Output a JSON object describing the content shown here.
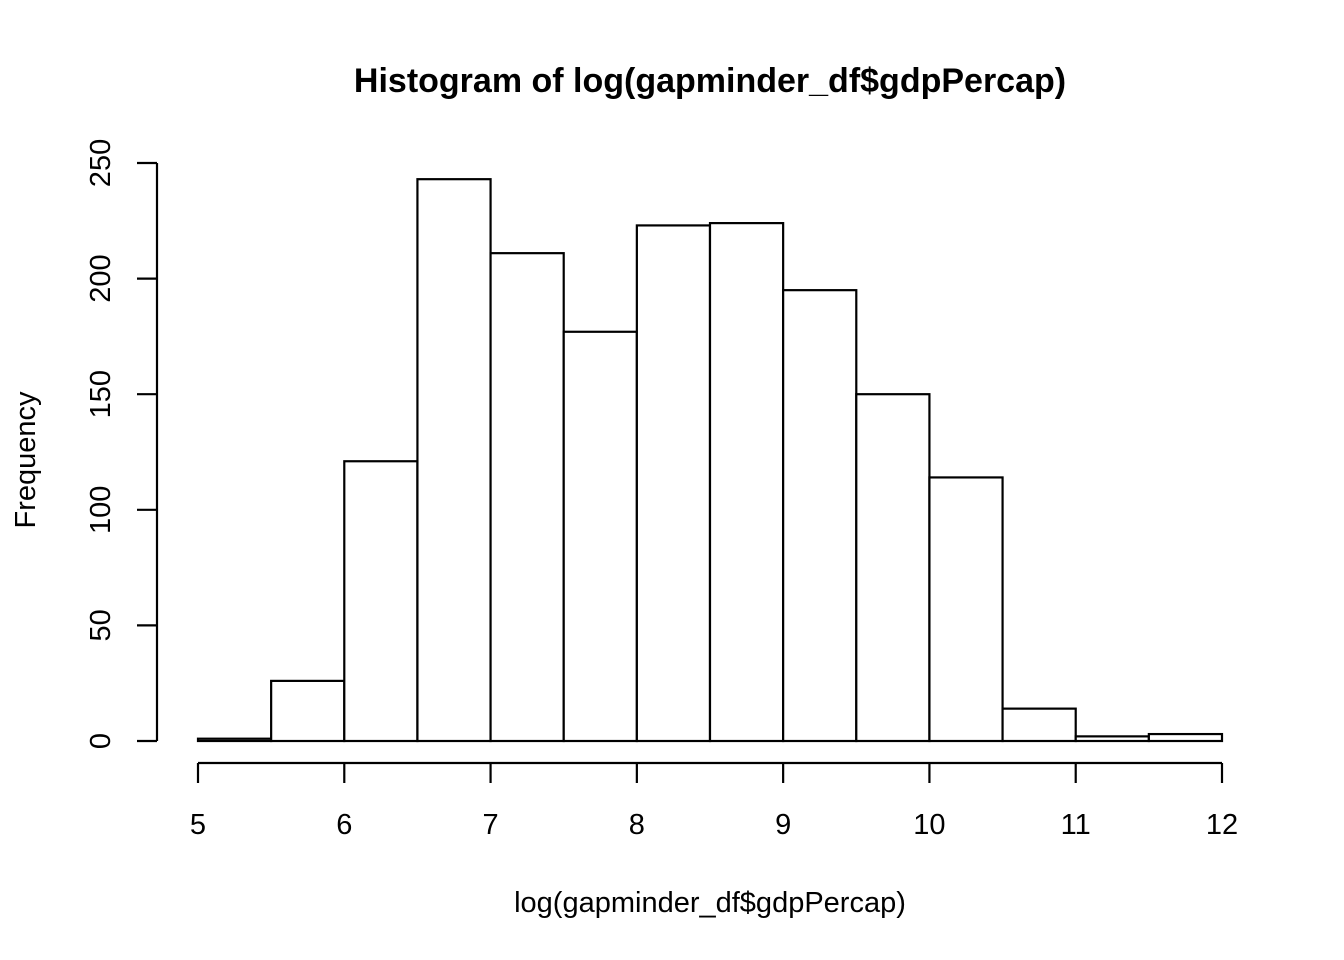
{
  "chart_data": {
    "type": "bar",
    "title": "Histogram of log(gapminder_df$gdpPercap)",
    "xlabel": "log(gapminder_df$gdpPercap)",
    "ylabel": "Frequency",
    "bin_edges": [
      5,
      5.5,
      6,
      6.5,
      7,
      7.5,
      8,
      8.5,
      9,
      9.5,
      10,
      10.5,
      11,
      11.5,
      12
    ],
    "values": [
      1,
      26,
      121,
      243,
      211,
      177,
      223,
      224,
      195,
      150,
      114,
      14,
      2,
      3
    ],
    "xlim": [
      5,
      12
    ],
    "ylim": [
      0,
      250
    ],
    "x_ticks": [
      "5",
      "6",
      "7",
      "8",
      "9",
      "10",
      "11",
      "12"
    ],
    "y_ticks": [
      "0",
      "50",
      "100",
      "150",
      "200",
      "250"
    ],
    "grid": false,
    "legend": "none"
  },
  "colors": {
    "bar_fill": "#ffffff",
    "bar_stroke": "#000000",
    "background": "#ffffff"
  }
}
